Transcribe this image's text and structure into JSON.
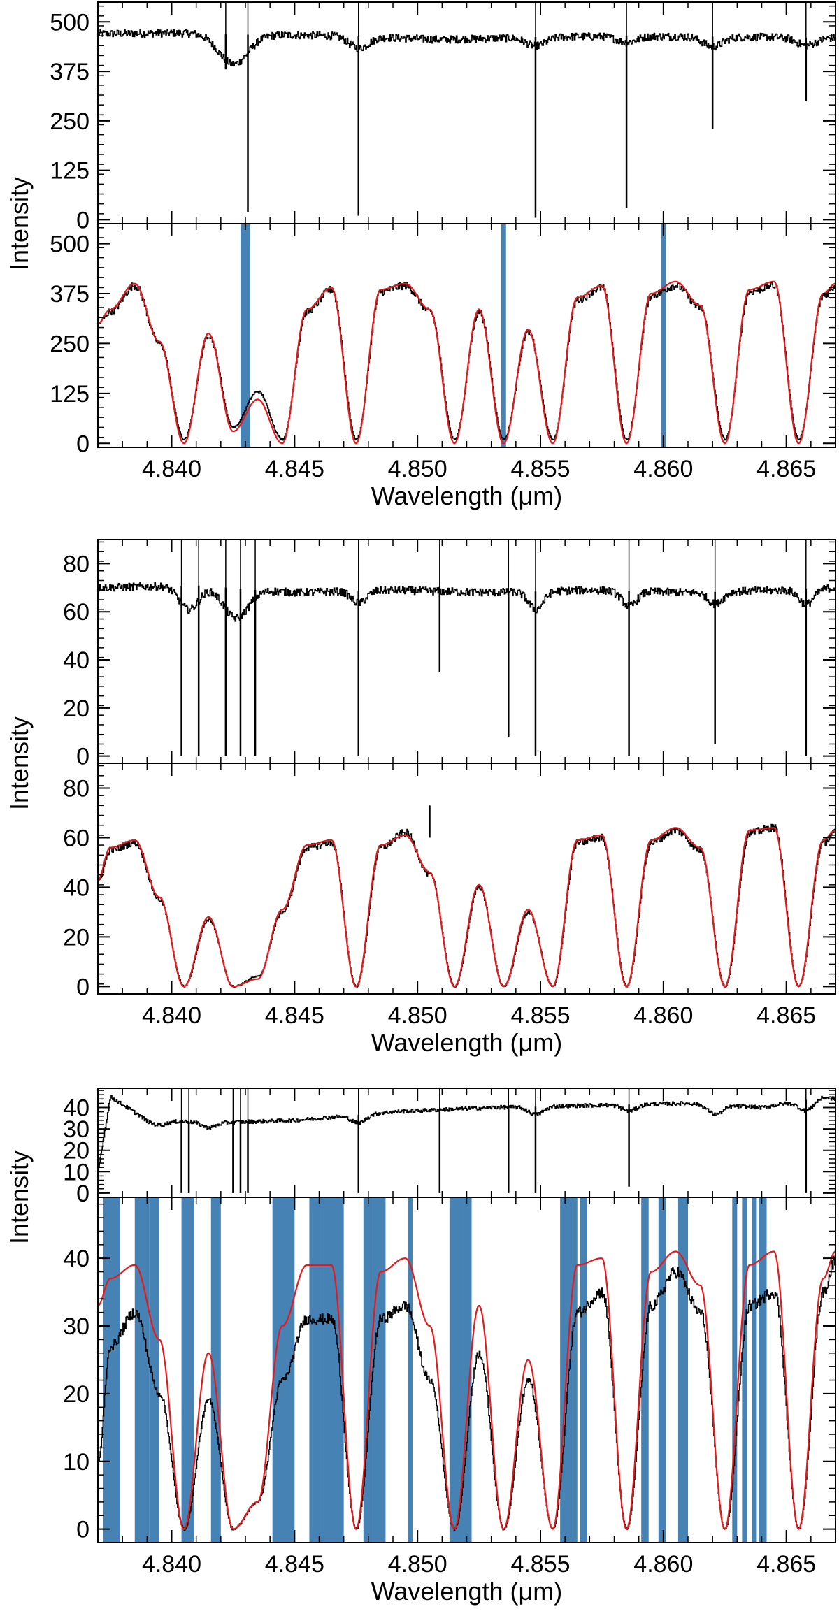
{
  "figure": {
    "colors": {
      "observed": "#000000",
      "model": "#e41a1c",
      "masked": "#4682b4",
      "axes": "#000000"
    }
  },
  "chart_data": [
    {
      "type": "line",
      "panel": "group-1-top",
      "ylabel": "",
      "xlabel": "",
      "xlim": [
        4.837,
        4.867
      ],
      "ylim": [
        -10,
        550
      ],
      "yticks": [
        "0",
        "125",
        "250",
        "375",
        "500"
      ],
      "xticks": [
        "4.840",
        "4.845",
        "4.850",
        "4.855",
        "4.860",
        "4.865"
      ],
      "continuum": [
        [
          4.837,
          470
        ],
        [
          4.841,
          472
        ],
        [
          4.843,
          468
        ],
        [
          4.847,
          465
        ],
        [
          4.851,
          455
        ],
        [
          4.855,
          462
        ],
        [
          4.859,
          464
        ],
        [
          4.863,
          462
        ],
        [
          4.867,
          460
        ]
      ],
      "dips": [
        [
          4.8425,
          300,
          0.0006
        ],
        [
          4.8476,
          120,
          0.0004
        ],
        [
          4.8548,
          90,
          0.0004
        ],
        [
          4.8585,
          60,
          0.0004
        ],
        [
          4.862,
          100,
          0.0004
        ],
        [
          4.8658,
          80,
          0.0004
        ]
      ],
      "spikes": [
        [
          4.8431,
          20
        ],
        [
          4.8476,
          10
        ],
        [
          4.8548,
          5
        ],
        [
          4.8585,
          30
        ],
        [
          4.862,
          230
        ],
        [
          4.8658,
          300
        ],
        [
          4.8422,
          380
        ]
      ]
    },
    {
      "type": "line",
      "panel": "group-1-bottom",
      "ylabel": "Intensity",
      "xlabel": "Wavelength (μm)",
      "xlim": [
        4.837,
        4.867
      ],
      "ylim": [
        -10,
        550
      ],
      "yticks": [
        "0",
        "125",
        "250",
        "375",
        "500"
      ],
      "xticks": [
        "4.840",
        "4.845",
        "4.850",
        "4.855",
        "4.860",
        "4.865"
      ],
      "series": [
        {
          "role": "observed",
          "x": [
            4.837,
            4.8375,
            4.8385,
            4.8395,
            4.8405,
            4.8415,
            4.8425,
            4.8435,
            4.8445,
            4.8455,
            4.8465,
            4.8475,
            4.8485,
            4.8495,
            4.8505,
            4.8515,
            4.8525,
            4.8535,
            4.8545,
            4.8555,
            4.8565,
            4.8575,
            4.8585,
            4.8595,
            4.8605,
            4.8615,
            4.8625,
            4.8635,
            4.8645,
            4.8655,
            4.8665,
            4.867
          ],
          "y": [
            300,
            330,
            395,
            250,
            10,
            270,
            40,
            130,
            10,
            330,
            385,
            10,
            380,
            395,
            330,
            10,
            330,
            10,
            280,
            10,
            360,
            390,
            10,
            370,
            395,
            340,
            10,
            380,
            395,
            10,
            370,
            395
          ]
        },
        {
          "role": "model",
          "x": [
            4.837,
            4.8375,
            4.8385,
            4.8395,
            4.8405,
            4.8415,
            4.8425,
            4.8435,
            4.8445,
            4.8455,
            4.8465,
            4.8475,
            4.8485,
            4.8495,
            4.8505,
            4.8515,
            4.8525,
            4.8535,
            4.8545,
            4.8555,
            4.8565,
            4.8575,
            4.8585,
            4.8595,
            4.8605,
            4.8615,
            4.8625,
            4.8635,
            4.8645,
            4.8655,
            4.8665,
            4.867
          ],
          "y": [
            300,
            335,
            400,
            255,
            0,
            275,
            30,
            110,
            0,
            335,
            390,
            0,
            385,
            400,
            335,
            0,
            335,
            0,
            285,
            0,
            365,
            395,
            0,
            375,
            405,
            345,
            0,
            385,
            405,
            0,
            375,
            400
          ]
        }
      ],
      "masked_regions": [
        [
          4.8428,
          4.8432
        ],
        [
          4.8534,
          4.8536
        ],
        [
          4.8599,
          4.8601
        ]
      ]
    },
    {
      "type": "line",
      "panel": "group-2-top",
      "ylabel": "",
      "xlabel": "",
      "xlim": [
        4.837,
        4.867
      ],
      "ylim": [
        -3,
        90
      ],
      "yticks": [
        "0",
        "20",
        "40",
        "60",
        "80"
      ],
      "xticks": [
        "4.840",
        "4.845",
        "4.850",
        "4.855",
        "4.860",
        "4.865"
      ],
      "continuum": [
        [
          4.837,
          70
        ],
        [
          4.841,
          71
        ],
        [
          4.845,
          68
        ],
        [
          4.849,
          69
        ],
        [
          4.853,
          68
        ],
        [
          4.857,
          69
        ],
        [
          4.861,
          68
        ],
        [
          4.865,
          69
        ],
        [
          4.867,
          70
        ]
      ],
      "dips": [
        [
          4.8407,
          40,
          0.0004
        ],
        [
          4.8426,
          50,
          0.0005
        ],
        [
          4.8476,
          20,
          0.0003
        ],
        [
          4.8548,
          30,
          0.0003
        ],
        [
          4.8586,
          25,
          0.0003
        ],
        [
          4.8621,
          20,
          0.0003
        ],
        [
          4.8658,
          25,
          0.0003
        ]
      ],
      "spikes": [
        [
          4.8404,
          0
        ],
        [
          4.8411,
          0
        ],
        [
          4.8422,
          0
        ],
        [
          4.8428,
          0
        ],
        [
          4.8434,
          0
        ],
        [
          4.8476,
          0
        ],
        [
          4.8509,
          35
        ],
        [
          4.8537,
          8
        ],
        [
          4.8548,
          0
        ],
        [
          4.8586,
          0
        ],
        [
          4.8621,
          5
        ],
        [
          4.8658,
          0
        ]
      ]
    },
    {
      "type": "line",
      "panel": "group-2-bottom",
      "ylabel": "Intensity",
      "xlabel": "Wavelength (μm)",
      "xlim": [
        4.837,
        4.867
      ],
      "ylim": [
        -3,
        90
      ],
      "yticks": [
        "0",
        "20",
        "40",
        "60",
        "80"
      ],
      "xticks": [
        "4.840",
        "4.845",
        "4.850",
        "4.855",
        "4.860",
        "4.865"
      ],
      "series": [
        {
          "role": "observed",
          "x": [
            4.837,
            4.8375,
            4.8385,
            4.8395,
            4.8405,
            4.8415,
            4.8425,
            4.8435,
            4.8445,
            4.8455,
            4.8465,
            4.8475,
            4.8485,
            4.8495,
            4.8505,
            4.8515,
            4.8525,
            4.8535,
            4.8545,
            4.8555,
            4.8565,
            4.8575,
            4.8585,
            4.8595,
            4.8605,
            4.8615,
            4.8625,
            4.8635,
            4.8645,
            4.8655,
            4.8665,
            4.867
          ],
          "y": [
            42,
            55,
            58,
            35,
            0,
            27,
            0,
            4,
            30,
            56,
            58,
            0,
            56,
            62,
            45,
            0,
            40,
            0,
            30,
            0,
            58,
            60,
            0,
            58,
            63,
            55,
            0,
            62,
            64,
            0,
            58,
            62
          ]
        },
        {
          "role": "model",
          "x": [
            4.837,
            4.8375,
            4.8385,
            4.8395,
            4.8405,
            4.8415,
            4.8425,
            4.8435,
            4.8445,
            4.8455,
            4.8465,
            4.8475,
            4.8485,
            4.8495,
            4.8505,
            4.8515,
            4.8525,
            4.8535,
            4.8545,
            4.8555,
            4.8565,
            4.8575,
            4.8585,
            4.8595,
            4.8605,
            4.8615,
            4.8625,
            4.8635,
            4.8645,
            4.8655,
            4.8665,
            4.867
          ],
          "y": [
            43,
            56,
            59,
            36,
            0,
            28,
            0,
            3,
            31,
            57,
            59,
            0,
            57,
            61,
            46,
            0,
            41,
            0,
            31,
            0,
            59,
            61,
            0,
            59,
            64,
            56,
            0,
            63,
            64,
            0,
            59,
            63
          ]
        }
      ],
      "spike_annotation": {
        "x": 4.8505,
        "y": 73
      }
    },
    {
      "type": "line",
      "panel": "group-3-top",
      "ylabel": "",
      "xlabel": "",
      "xlim": [
        4.837,
        4.867
      ],
      "ylim": [
        -2,
        49
      ],
      "yticks": [
        "0",
        "10",
        "20",
        "30",
        "40"
      ],
      "xticks": [
        "4.840",
        "4.845",
        "4.850",
        "4.855",
        "4.860",
        "4.865"
      ],
      "continuum": [
        [
          4.837,
          10
        ],
        [
          4.8375,
          45
        ],
        [
          4.839,
          34
        ],
        [
          4.842,
          33
        ],
        [
          4.845,
          34
        ],
        [
          4.849,
          38
        ],
        [
          4.853,
          40
        ],
        [
          4.857,
          41
        ],
        [
          4.861,
          42
        ],
        [
          4.864,
          40
        ],
        [
          4.8665,
          45
        ],
        [
          4.867,
          44
        ]
      ],
      "dips": [
        [
          4.8395,
          8,
          0.0003
        ],
        [
          4.8415,
          10,
          0.0003
        ],
        [
          4.8476,
          15,
          0.0003
        ],
        [
          4.8548,
          15,
          0.0003
        ],
        [
          4.8586,
          12,
          0.0003
        ],
        [
          4.8621,
          18,
          0.0003
        ],
        [
          4.8658,
          20,
          0.0003
        ]
      ],
      "spikes": [
        [
          4.8404,
          0
        ],
        [
          4.8407,
          0
        ],
        [
          4.8425,
          0
        ],
        [
          4.8428,
          0
        ],
        [
          4.8431,
          0
        ],
        [
          4.8476,
          0
        ],
        [
          4.8509,
          0
        ],
        [
          4.8537,
          0
        ],
        [
          4.8548,
          0
        ],
        [
          4.8586,
          3
        ],
        [
          4.8658,
          0
        ]
      ]
    },
    {
      "type": "line",
      "panel": "group-3-bottom",
      "ylabel": "Intensity",
      "xlabel": "Wavelength (μm)",
      "xlim": [
        4.837,
        4.867
      ],
      "ylim": [
        -2,
        49
      ],
      "yticks": [
        "0",
        "10",
        "20",
        "30",
        "40"
      ],
      "xticks": [
        "4.840",
        "4.845",
        "4.850",
        "4.855",
        "4.860",
        "4.865"
      ],
      "series": [
        {
          "role": "observed",
          "x": [
            4.837,
            4.8375,
            4.8385,
            4.8395,
            4.8405,
            4.8415,
            4.8425,
            4.8435,
            4.8445,
            4.8455,
            4.8465,
            4.8475,
            4.8485,
            4.8495,
            4.8505,
            4.8515,
            4.8525,
            4.8535,
            4.8545,
            4.8555,
            4.8565,
            4.8575,
            4.8585,
            4.8595,
            4.8605,
            4.8615,
            4.8625,
            4.8635,
            4.8645,
            4.8655,
            4.8665,
            4.867
          ],
          "y": [
            10,
            27,
            32,
            20,
            0,
            19,
            0,
            4,
            22,
            31,
            31,
            0,
            31,
            33,
            22,
            0,
            26,
            0,
            22,
            0,
            32,
            35,
            0,
            33,
            38,
            32,
            0,
            33,
            35,
            0,
            35,
            40
          ]
        },
        {
          "role": "model",
          "x": [
            4.837,
            4.8375,
            4.8385,
            4.8395,
            4.8405,
            4.8415,
            4.8425,
            4.8435,
            4.8445,
            4.8455,
            4.8465,
            4.8475,
            4.8485,
            4.8495,
            4.8505,
            4.8515,
            4.8525,
            4.8535,
            4.8545,
            4.8555,
            4.8565,
            4.8575,
            4.8585,
            4.8595,
            4.8605,
            4.8615,
            4.8625,
            4.8635,
            4.8645,
            4.8655,
            4.8665,
            4.867
          ],
          "y": [
            33,
            37,
            39,
            28,
            0,
            26,
            0,
            4,
            30,
            39,
            39,
            0,
            38,
            40,
            30,
            0,
            33,
            0,
            25,
            0,
            39,
            40,
            0,
            38,
            41,
            36,
            0,
            39,
            41,
            0,
            37,
            41
          ]
        }
      ],
      "masked_regions": [
        [
          4.8372,
          4.8379
        ],
        [
          4.8385,
          4.8391
        ],
        [
          4.8391,
          4.8395
        ],
        [
          4.8404,
          4.8409
        ],
        [
          4.8416,
          4.842
        ],
        [
          4.8441,
          4.845
        ],
        [
          4.8456,
          4.8462
        ],
        [
          4.8462,
          4.847
        ],
        [
          4.8478,
          4.8481
        ],
        [
          4.8481,
          4.8487
        ],
        [
          4.8496,
          4.8498
        ],
        [
          4.8513,
          4.8519
        ],
        [
          4.8519,
          4.8522
        ],
        [
          4.8558,
          4.8564
        ],
        [
          4.8564,
          4.8565
        ],
        [
          4.8566,
          4.8569
        ],
        [
          4.8591,
          4.8594
        ],
        [
          4.8598,
          4.8601
        ],
        [
          4.8606,
          4.861
        ],
        [
          4.8628,
          4.863
        ],
        [
          4.8632,
          4.8634
        ],
        [
          4.8636,
          4.8638
        ],
        [
          4.8639,
          4.8642
        ]
      ]
    }
  ]
}
